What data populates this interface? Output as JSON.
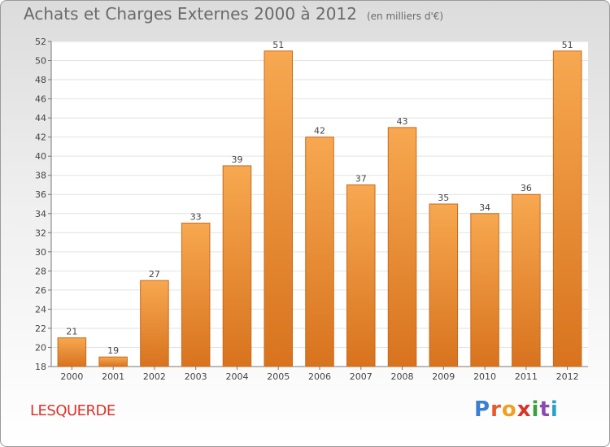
{
  "header": {
    "title": "Achats et Charges Externes 2000 à 2012",
    "unit": "(en milliers d'€)"
  },
  "footer": {
    "commune": "LESQUERDE",
    "logo_letters": [
      "P",
      "r",
      "o",
      "x",
      "i",
      "t",
      "i"
    ],
    "logo_colors": [
      "#3a7fd0",
      "#e65a2a",
      "#f0a020",
      "#d9342b",
      "#3aa03a",
      "#8a4ab0",
      "#2aa0c8"
    ]
  },
  "chart_data": {
    "type": "bar",
    "title": "Achats et Charges Externes 2000 à 2012",
    "subtitle": "(en milliers d'€)",
    "xlabel": "",
    "ylabel": "",
    "categories": [
      "2000",
      "2001",
      "2002",
      "2003",
      "2004",
      "2005",
      "2006",
      "2007",
      "2008",
      "2009",
      "2010",
      "2011",
      "2012"
    ],
    "values": [
      21,
      19,
      27,
      33,
      39,
      51,
      42,
      37,
      43,
      35,
      34,
      36,
      51
    ],
    "ylim": [
      18,
      52
    ],
    "yticks": [
      18,
      20,
      22,
      24,
      26,
      28,
      30,
      32,
      34,
      36,
      38,
      40,
      42,
      44,
      46,
      48,
      50,
      52
    ],
    "grid": true,
    "legend": "none",
    "bar_color_top": "#f7a850",
    "bar_color_bottom": "#d8731e",
    "bar_border": "#c9691c"
  }
}
